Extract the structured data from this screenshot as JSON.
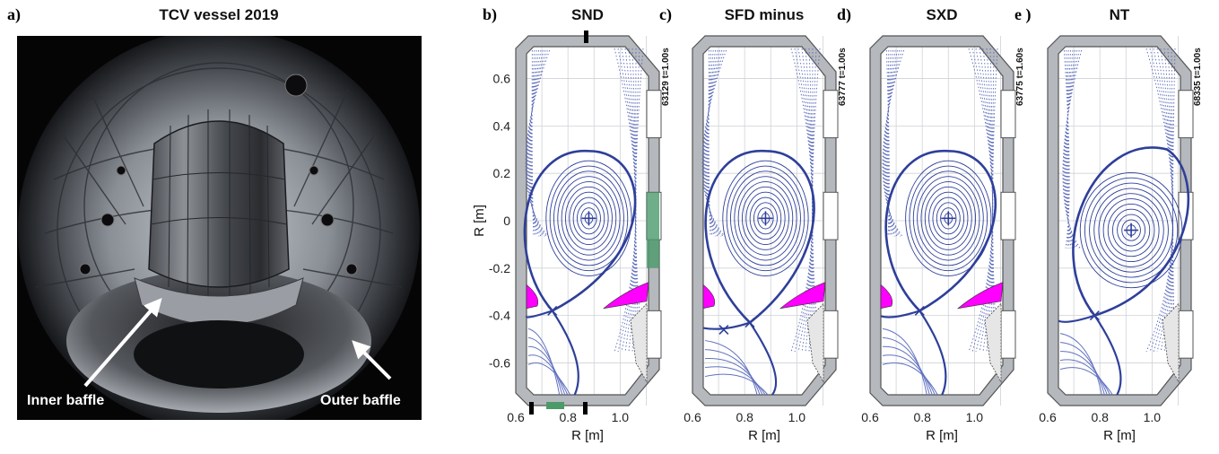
{
  "photo": {
    "label": "a)",
    "title": "TCV vessel 2019",
    "annotations": [
      "Inner baffle",
      "Outer baffle"
    ]
  },
  "chart_data": [
    {
      "type": "diagram",
      "label": "b)",
      "title": "SND",
      "shot": "63129 t=1.00s",
      "xlabel": "R [m]",
      "ylabel": "R [m]",
      "xticks": [
        "0.6",
        "0.8",
        "1.0"
      ],
      "yticks": [
        "0.6",
        "0.4",
        "0.2",
        "0",
        "-0.2",
        "-0.4",
        "-0.6"
      ],
      "xlim": [
        0.6,
        1.15
      ],
      "ylim": [
        -0.78,
        0.78
      ],
      "magnetic_axis": [
        0.88,
        0.01
      ],
      "x_points": [
        [
          0.74,
          -0.38
        ]
      ],
      "lcfs_color": "#2e3f9a",
      "baffle_color": "#ff00ff",
      "diagnostic_color": "#4a9a6a"
    },
    {
      "type": "diagram",
      "label": "c)",
      "title": "SFD minus",
      "shot": "63777 t=1.00s",
      "xlabel": "R [m]",
      "ylabel": "",
      "xticks": [
        "0.6",
        "0.8",
        "1.0"
      ],
      "yticks": [],
      "xlim": [
        0.6,
        1.15
      ],
      "ylim": [
        -0.78,
        0.78
      ],
      "magnetic_axis": [
        0.88,
        0.01
      ],
      "x_points": [
        [
          0.82,
          -0.43
        ],
        [
          0.72,
          -0.46
        ]
      ],
      "lcfs_color": "#2e3f9a",
      "baffle_color": "#ff00ff"
    },
    {
      "type": "diagram",
      "label": "d)",
      "title": "SXD",
      "shot": "63775 t=1.60s",
      "xlabel": "R [m]",
      "ylabel": "",
      "xticks": [
        "0.6",
        "0.8",
        "1.0"
      ],
      "yticks": [],
      "xlim": [
        0.6,
        1.15
      ],
      "ylim": [
        -0.78,
        0.78
      ],
      "magnetic_axis": [
        0.9,
        0.01
      ],
      "x_points": [
        [
          0.79,
          -0.38
        ]
      ],
      "lcfs_color": "#2e3f9a",
      "baffle_color": "#ff00ff"
    },
    {
      "type": "diagram",
      "label": "e )",
      "title": "NT",
      "shot": "68335 t=1.00s",
      "xlabel": "R [m]",
      "ylabel": "",
      "xticks": [
        "0.6",
        "0.8",
        "1.0"
      ],
      "yticks": [],
      "xlim": [
        0.6,
        1.15
      ],
      "ylim": [
        -0.78,
        0.78
      ],
      "magnetic_axis": [
        0.92,
        -0.04
      ],
      "x_points": [
        [
          0.78,
          -0.4
        ]
      ],
      "lcfs_color": "#2e3f9a"
    }
  ]
}
